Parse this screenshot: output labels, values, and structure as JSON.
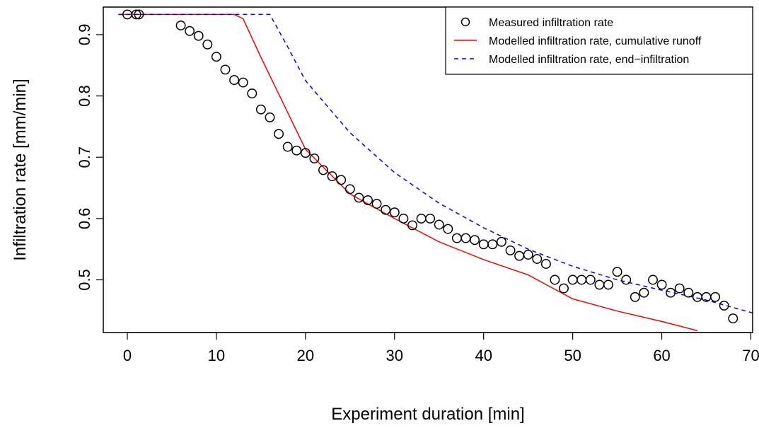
{
  "chart_data": {
    "type": "scatter",
    "title": "",
    "xlabel": "Experiment duration [min]",
    "ylabel": "Infiltration rate [mm/min]",
    "xlim": [
      -2.7,
      70.2
    ],
    "ylim": [
      0.414,
      0.945
    ],
    "xticks": [
      0,
      10,
      20,
      30,
      40,
      50,
      60,
      70
    ],
    "yticks": [
      0.5,
      0.6,
      0.7,
      0.8,
      0.9
    ],
    "xtick_labels": [
      "0",
      "10",
      "20",
      "30",
      "40",
      "50",
      "60",
      "70"
    ],
    "ytick_labels": [
      "0.5",
      "0.6",
      "0.7",
      "0.8",
      "0.9"
    ],
    "grid": false,
    "legend_position": "top-right",
    "series": [
      {
        "name": "Measured infiltration rate",
        "kind": "points",
        "color": "#000000",
        "x": [
          0,
          1,
          1.3,
          6,
          7,
          8,
          9,
          10,
          11,
          12,
          13,
          14,
          15,
          16,
          17,
          18,
          19,
          20,
          21,
          22,
          23,
          24,
          25,
          26,
          27,
          28,
          29,
          30,
          31,
          32,
          33,
          34,
          35,
          36,
          37,
          38,
          39,
          40,
          41,
          42,
          43,
          44,
          45,
          46,
          47,
          48,
          49,
          50,
          51,
          52,
          53,
          54,
          55,
          56,
          57,
          58,
          59,
          60,
          61,
          62,
          63,
          64,
          65,
          66,
          67,
          68
        ],
        "y": [
          0.933,
          0.933,
          0.933,
          0.915,
          0.906,
          0.898,
          0.884,
          0.864,
          0.843,
          0.826,
          0.822,
          0.804,
          0.778,
          0.765,
          0.738,
          0.717,
          0.711,
          0.707,
          0.698,
          0.679,
          0.669,
          0.663,
          0.648,
          0.634,
          0.63,
          0.624,
          0.614,
          0.61,
          0.6,
          0.589,
          0.6,
          0.6,
          0.59,
          0.583,
          0.568,
          0.568,
          0.565,
          0.558,
          0.558,
          0.562,
          0.548,
          0.539,
          0.541,
          0.534,
          0.526,
          0.5,
          0.486,
          0.5,
          0.5,
          0.5,
          0.492,
          0.492,
          0.513,
          0.5,
          0.472,
          0.479,
          0.5,
          0.492,
          0.479,
          0.486,
          0.479,
          0.472,
          0.472,
          0.472,
          0.458,
          0.437
        ]
      },
      {
        "name": "Modelled infiltration rate, cumulative runoff",
        "kind": "line",
        "dash": "solid",
        "color": "#ff0000",
        "x": [
          -1,
          12,
          13,
          15,
          20,
          25,
          30,
          35,
          40,
          45,
          50,
          55,
          60,
          64
        ],
        "y": [
          0.933,
          0.933,
          0.926,
          0.863,
          0.713,
          0.64,
          0.6,
          0.562,
          0.533,
          0.508,
          0.469,
          0.449,
          0.432,
          0.417
        ]
      },
      {
        "name": "Modelled infiltration rate, end−infiltration",
        "kind": "line",
        "dash": "dashed",
        "color": "#0000ff",
        "x": [
          -1,
          16,
          18,
          20,
          25,
          30,
          35,
          40,
          45,
          50,
          55,
          60,
          65,
          70.2
        ],
        "y": [
          0.933,
          0.933,
          0.88,
          0.825,
          0.74,
          0.675,
          0.625,
          0.585,
          0.55,
          0.522,
          0.5,
          0.483,
          0.467,
          0.446
        ]
      }
    ]
  }
}
